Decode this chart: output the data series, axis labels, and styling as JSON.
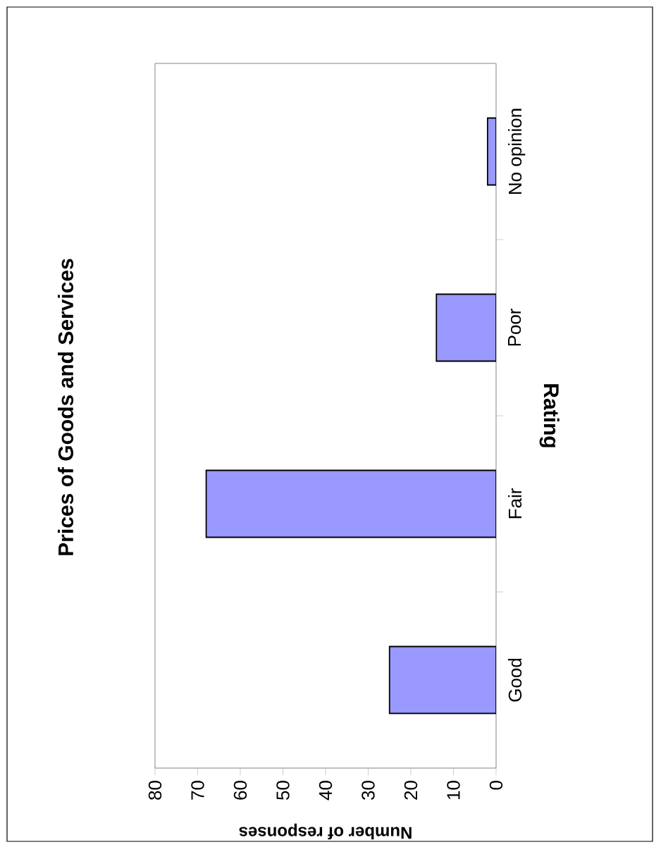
{
  "chart_data": {
    "type": "bar",
    "orientation": "horizontal",
    "title": "Prices of Goods and Services",
    "ylabel": "Rating",
    "xlabel": "Number of responses",
    "categories": [
      "No opinion",
      "Poor",
      "Fair",
      "Good"
    ],
    "values": [
      2,
      14,
      68,
      25
    ],
    "color": "#9999ff",
    "xlim": [
      80,
      0
    ],
    "xticks": [
      80,
      70,
      60,
      50,
      40,
      30,
      20,
      10,
      0
    ]
  }
}
